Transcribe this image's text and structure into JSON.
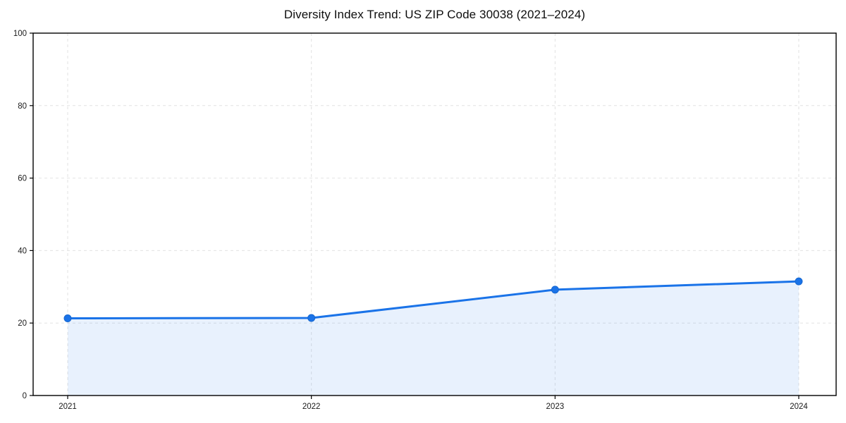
{
  "chart_data": {
    "type": "area",
    "title": "Diversity Index Trend: US ZIP Code 30038 (2021–2024)",
    "categories": [
      "2021",
      "2022",
      "2023",
      "2024"
    ],
    "series": [
      {
        "name": "Diversity Index",
        "values": [
          21.3,
          21.4,
          29.2,
          31.5
        ]
      }
    ],
    "xlabel": "",
    "ylabel": "",
    "ylim": [
      0,
      100
    ],
    "y_ticks": [
      0,
      20,
      40,
      60,
      80,
      100
    ],
    "grid": "dashed",
    "legend": "none",
    "colors": {
      "line": "#1a73e8",
      "marker": "#1a73e8",
      "marker_edge": "#1667d0",
      "area_fill": "#1a73e8",
      "area_opacity": "0.10",
      "gridline": "#e2e2e2",
      "spine": "#000000",
      "tick_text": "#1a1a1a",
      "background": "#ffffff"
    }
  }
}
